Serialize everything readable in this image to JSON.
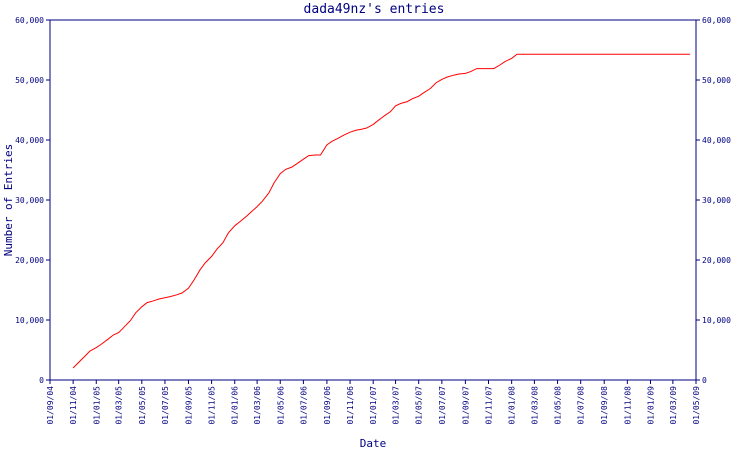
{
  "chart_data": {
    "type": "line",
    "title": "dada49nz's entries",
    "xlabel": "Date",
    "ylabel": "Number of Entries",
    "ylim": [
      0,
      60000
    ],
    "yticks": [
      0,
      10000,
      20000,
      30000,
      40000,
      50000,
      60000
    ],
    "ytick_labels": [
      "0",
      "10,000",
      "20,000",
      "30,000",
      "40,000",
      "50,000",
      "60,000"
    ],
    "xlim": [
      "2004-09-01",
      "2009-05-01"
    ],
    "xtick_labels": [
      "01/09/04",
      "01/11/04",
      "01/01/05",
      "01/03/05",
      "01/05/05",
      "01/07/05",
      "01/09/05",
      "01/11/05",
      "01/01/06",
      "01/03/06",
      "01/05/06",
      "01/07/06",
      "01/09/06",
      "01/11/06",
      "01/01/07",
      "01/03/07",
      "01/05/07",
      "01/07/07",
      "01/09/07",
      "01/11/07",
      "01/01/08",
      "01/03/08",
      "01/05/08",
      "01/07/08",
      "01/09/08",
      "01/11/08",
      "01/01/09",
      "01/03/09",
      "01/05/09"
    ],
    "grid": false,
    "axes_color": "#000080",
    "series": [
      {
        "color": "#ff0000",
        "x": [
          "2004-11-01",
          "2004-11-15",
          "2004-12-01",
          "2004-12-15",
          "2005-01-01",
          "2005-01-15",
          "2005-02-01",
          "2005-02-15",
          "2005-03-01",
          "2005-03-15",
          "2005-04-01",
          "2005-04-15",
          "2005-05-01",
          "2005-05-15",
          "2005-06-01",
          "2005-06-15",
          "2005-07-01",
          "2005-07-15",
          "2005-08-01",
          "2005-08-15",
          "2005-09-01",
          "2005-09-15",
          "2005-10-01",
          "2005-10-15",
          "2005-11-01",
          "2005-11-15",
          "2005-12-01",
          "2005-12-15",
          "2006-01-01",
          "2006-01-15",
          "2006-02-01",
          "2006-02-15",
          "2006-03-01",
          "2006-03-15",
          "2006-04-01",
          "2006-04-15",
          "2006-05-01",
          "2006-05-15",
          "2006-06-01",
          "2006-06-15",
          "2006-07-01",
          "2006-07-15",
          "2006-08-01",
          "2006-08-15",
          "2006-09-01",
          "2006-09-15",
          "2006-10-01",
          "2006-10-15",
          "2006-11-01",
          "2006-11-15",
          "2006-12-01",
          "2006-12-15",
          "2007-01-01",
          "2007-01-15",
          "2007-02-01",
          "2007-02-15",
          "2007-03-01",
          "2007-03-15",
          "2007-04-01",
          "2007-04-15",
          "2007-05-01",
          "2007-05-15",
          "2007-06-01",
          "2007-06-15",
          "2007-07-01",
          "2007-07-15",
          "2007-08-01",
          "2007-08-15",
          "2007-09-01",
          "2007-09-15",
          "2007-10-01",
          "2007-10-15",
          "2007-11-01",
          "2007-11-15",
          "2007-12-01",
          "2007-12-15",
          "2008-01-01",
          "2008-01-15",
          "2008-02-01",
          "2008-02-15",
          "2008-03-01",
          "2008-03-15",
          "2008-04-01",
          "2008-04-15",
          "2008-05-01",
          "2008-05-15",
          "2008-06-01",
          "2008-07-01",
          "2008-09-01",
          "2008-11-01",
          "2009-01-01",
          "2009-03-01",
          "2009-04-15"
        ],
        "y": [
          2000,
          2900,
          3900,
          4800,
          5400,
          6000,
          6800,
          7500,
          7900,
          8800,
          9900,
          11200,
          12200,
          12900,
          13200,
          13500,
          13700,
          13900,
          14200,
          14500,
          15300,
          16600,
          18300,
          19500,
          20600,
          21800,
          22900,
          24500,
          25700,
          26400,
          27300,
          28100,
          28900,
          29800,
          31200,
          32900,
          34400,
          35100,
          35500,
          36100,
          36800,
          37400,
          37500,
          37500,
          39200,
          39800,
          40300,
          40800,
          41300,
          41600,
          41800,
          42000,
          42600,
          43300,
          44100,
          44700,
          45700,
          46100,
          46400,
          46900,
          47300,
          47900,
          48600,
          49500,
          50100,
          50500,
          50800,
          51000,
          51100,
          51400,
          51900,
          51900,
          51900,
          51900,
          52500,
          53100,
          53600,
          54300,
          54300,
          54300,
          54300,
          54300,
          54300,
          54300,
          54300,
          54300,
          54300,
          54300,
          54300,
          54300,
          54300,
          54300,
          54300
        ]
      }
    ]
  }
}
